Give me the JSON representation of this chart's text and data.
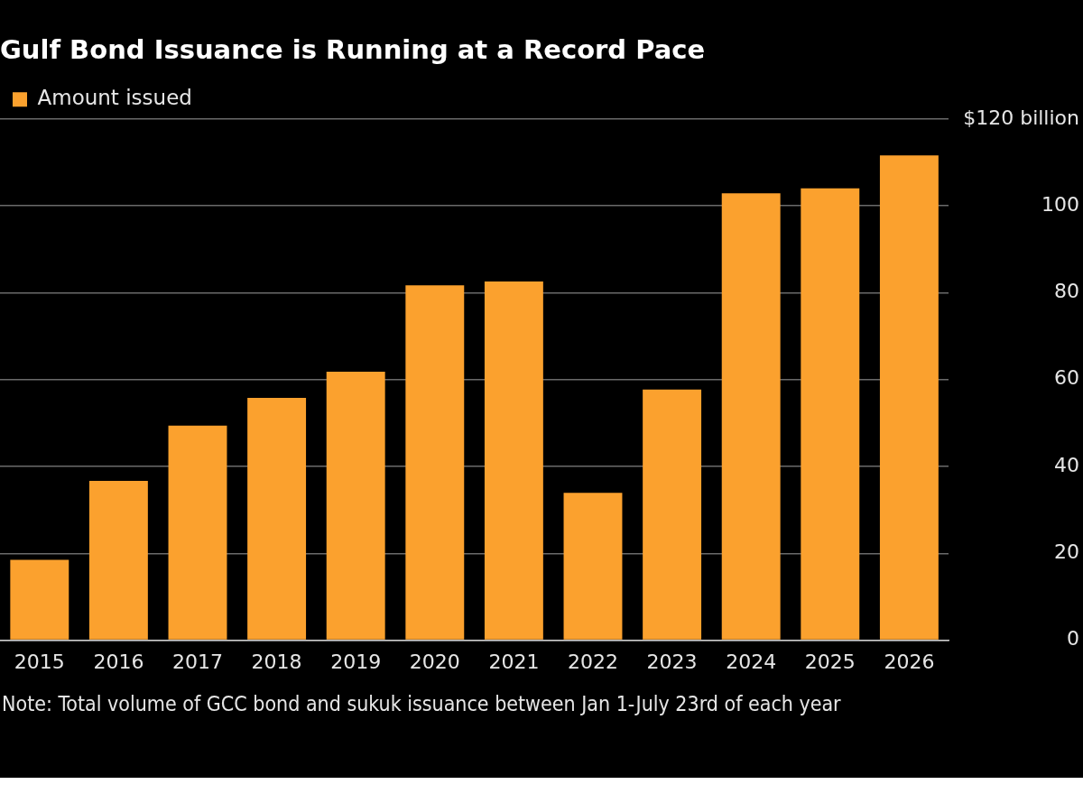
{
  "chart_data": {
    "type": "bar",
    "title": "Gulf Bond Issuance is Running at a Record Pace",
    "categories": [
      "2015",
      "2016",
      "2017",
      "2018",
      "2019",
      "2020",
      "2021",
      "2022",
      "2023",
      "2024",
      "2025",
      "2026"
    ],
    "series": [
      {
        "name": "Amount issued",
        "color": "#fba12e",
        "values": [
          18.5,
          36.7,
          49.4,
          55.8,
          61.8,
          81.7,
          82.6,
          33.9,
          57.7,
          102.9,
          104,
          111.6
        ]
      }
    ],
    "ylim": [
      0,
      120
    ],
    "yticks": [
      0,
      20,
      40,
      60,
      80,
      100,
      {
        "value": 120,
        "label": "$120 billion"
      }
    ],
    "grid": "y",
    "legend": "top left",
    "annotations": [
      "Note: Total volume of GCC bond and sukuk issuance between Jan 1-July 23rd of each year"
    ]
  }
}
